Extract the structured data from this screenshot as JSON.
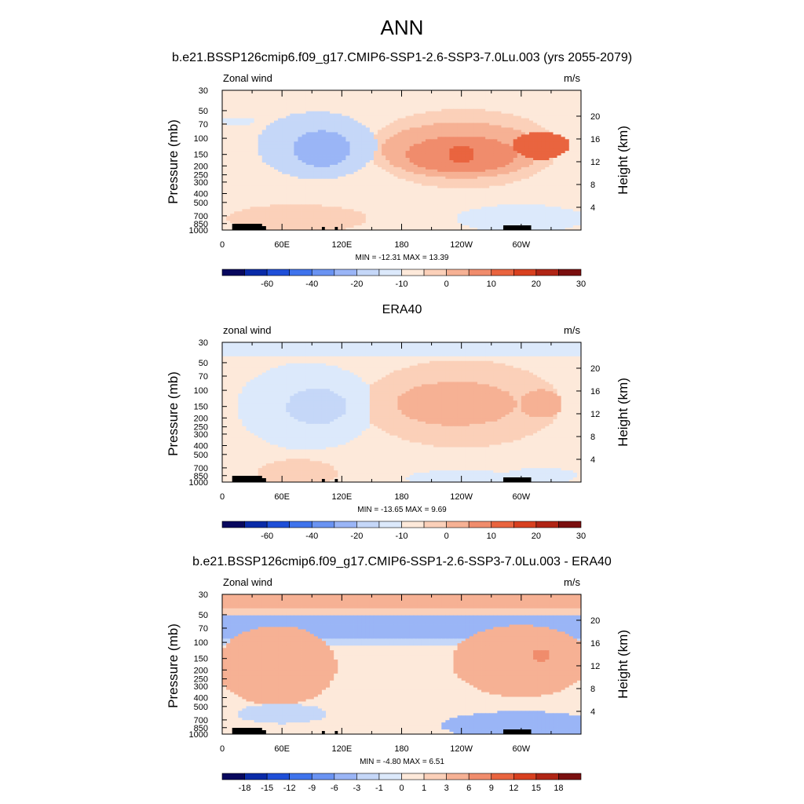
{
  "page_title": "ANN",
  "colors": {
    "neg": [
      "#08085e",
      "#0a2ba8",
      "#1f4fd8",
      "#3f73ec",
      "#6a93f2",
      "#9ab5f6",
      "#c5d7f8",
      "#dce9fb"
    ],
    "pos": [
      "#fde9da",
      "#fbd0b9",
      "#f6b194",
      "#f08c6c",
      "#e9643f",
      "#d8401f",
      "#b02515",
      "#7a0f0f"
    ]
  },
  "chart_data": [
    {
      "type": "heatmap",
      "title": "b.e21.BSSP126cmip6.f09_g17.CMIP6-SSP1-2.6-SSP3-7.0Lu.003 (yrs 2055-2079)",
      "left_label": "Zonal wind",
      "right_label": "m/s",
      "ylabel": "Pressure (mb)",
      "y2label": "Height (km)",
      "xticks": [
        "0",
        "60E",
        "120E",
        "180",
        "120W",
        "60W"
      ],
      "yticks": [
        "30",
        "50",
        "70",
        "100",
        "150",
        "200",
        "250",
        "300",
        "400",
        "500",
        "700",
        "850",
        "1000"
      ],
      "y2ticks": [
        "20",
        "16",
        "12",
        "8",
        "4"
      ],
      "stats": "MIN = -12.31  MAX =  13.39",
      "colorbar": [
        "-60",
        "-40",
        "-20",
        "-10",
        "0",
        "10",
        "20",
        "30"
      ],
      "base_class": 8,
      "features": [
        {
          "lon": 95,
          "p": 120,
          "a": 1,
          "class": 6,
          "wx": 60,
          "wp": 0.85
        },
        {
          "lon": 100,
          "p": 130,
          "a": 1,
          "class": 5,
          "wx": 28,
          "wp": 0.45
        },
        {
          "lon": 242,
          "p": 130,
          "a": 1,
          "class": 9,
          "wx": 95,
          "wp": 1.0
        },
        {
          "lon": 240,
          "p": 135,
          "a": 1,
          "class": 10,
          "wx": 80,
          "wp": 0.7
        },
        {
          "lon": 240,
          "p": 150,
          "a": 1,
          "class": 11,
          "wx": 55,
          "wp": 0.45
        },
        {
          "lon": 320,
          "p": 120,
          "a": 1,
          "class": 12,
          "wx": 28,
          "wp": 0.35
        },
        {
          "lon": 240,
          "p": 150,
          "a": 1,
          "class": 12,
          "wx": 14,
          "wp": 0.2
        },
        {
          "lon": 75,
          "p": 750,
          "a": 1,
          "class": 9,
          "wx": 70,
          "wp": 0.35
        },
        {
          "lon": 15,
          "p": 65,
          "a": 1,
          "class": 7,
          "wx": 18,
          "wp": 0.1
        },
        {
          "lon": 300,
          "p": 750,
          "a": 1,
          "class": 7,
          "wx": 65,
          "wp": 0.35
        }
      ]
    },
    {
      "type": "heatmap",
      "title": "ERA40",
      "left_label": "zonal wind",
      "right_label": "m/s",
      "ylabel": "Pressure (mb)",
      "y2label": "Height (km)",
      "xticks": [
        "0",
        "60E",
        "120E",
        "180",
        "120W",
        "60W"
      ],
      "yticks": [
        "30",
        "50",
        "70",
        "100",
        "150",
        "200",
        "250",
        "300",
        "400",
        "500",
        "700",
        "850",
        "1000"
      ],
      "y2ticks": [
        "20",
        "16",
        "12",
        "8",
        "4"
      ],
      "stats": "MIN = -13.65  MAX =   9.69",
      "colorbar": [
        "-60",
        "-40",
        "-20",
        "-10",
        "0",
        "10",
        "20",
        "30"
      ],
      "base_class": 8,
      "features": [
        {
          "lon": 85,
          "p": 150,
          "a": 1,
          "class": 7,
          "wx": 70,
          "wp": 1.1
        },
        {
          "lon": 95,
          "p": 150,
          "a": 1,
          "class": 6,
          "wx": 30,
          "wp": 0.45
        },
        {
          "lon": 240,
          "p": 140,
          "a": 1,
          "class": 9,
          "wx": 100,
          "wp": 1.1
        },
        {
          "lon": 235,
          "p": 140,
          "a": 1,
          "class": 10,
          "wx": 60,
          "wp": 0.55
        },
        {
          "lon": 320,
          "p": 140,
          "a": 1,
          "class": 10,
          "wx": 22,
          "wp": 0.35
        },
        {
          "lon": 75,
          "p": 800,
          "a": 1,
          "class": 9,
          "wx": 40,
          "wp": 0.35
        },
        {
          "lon": 240,
          "p": 900,
          "a": 1,
          "class": 7,
          "wx": 55,
          "wp": 0.2
        },
        {
          "lon": 320,
          "p": 850,
          "a": 1,
          "class": 7,
          "wx": 35,
          "wp": 0.2
        }
      ],
      "top_band_class": 7
    },
    {
      "type": "heatmap",
      "title": "b.e21.BSSP126cmip6.f09_g17.CMIP6-SSP1-2.6-SSP3-7.0Lu.003 - ERA40",
      "left_label": "Zonal wind",
      "right_label": "m/s",
      "ylabel": "Pressure (mb)",
      "y2label": "Height (km)",
      "xticks": [
        "0",
        "60E",
        "120E",
        "180",
        "120W",
        "60W"
      ],
      "yticks": [
        "30",
        "50",
        "70",
        "100",
        "150",
        "200",
        "250",
        "300",
        "400",
        "500",
        "700",
        "850",
        "1000"
      ],
      "y2ticks": [
        "20",
        "16",
        "12",
        "8",
        "4"
      ],
      "stats": "MIN =  -4.80  MAX =   6.51",
      "colorbar": [
        "-18",
        "-15",
        "-12",
        "-9",
        "-6",
        "-3",
        "-1",
        "0",
        "1",
        "3",
        "6",
        "9",
        "12",
        "15",
        "18"
      ],
      "base_class": 8,
      "features": [
        {
          "lon": 55,
          "p": 180,
          "a": 1,
          "class": 10,
          "wx": 60,
          "wp": 1.0
        },
        {
          "lon": 300,
          "p": 160,
          "a": 1,
          "class": 10,
          "wx": 70,
          "wp": 0.9
        },
        {
          "lon": 320,
          "p": 140,
          "a": 1,
          "class": 11,
          "wx": 10,
          "wp": 0.15
        },
        {
          "lon": 300,
          "p": 800,
          "a": 1,
          "class": 5,
          "wx": 80,
          "wp": 0.35
        },
        {
          "lon": 60,
          "p": 600,
          "a": 1,
          "class": 6,
          "wx": 45,
          "wp": 0.25
        }
      ],
      "bands": [
        {
          "p1": 30,
          "p2": 42,
          "class": 10
        },
        {
          "p1": 42,
          "p2": 50,
          "class": 9
        },
        {
          "p1": 50,
          "p2": 90,
          "class": 5
        },
        {
          "p1": 90,
          "p2": 110,
          "class": 6
        }
      ]
    }
  ]
}
